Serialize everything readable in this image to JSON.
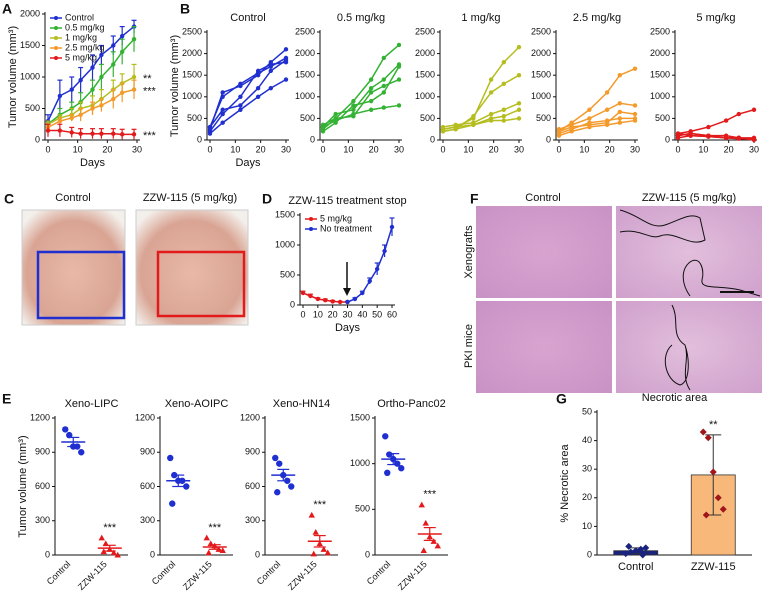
{
  "chart_data": [
    {
      "panel": "A",
      "type": "line",
      "ylabel": "Tumor volume (mm³)",
      "xlabel": "Days",
      "x": [
        0,
        4,
        8,
        11,
        15,
        18,
        22,
        25,
        29
      ],
      "xlim": [
        0,
        30
      ],
      "xticks": [
        0,
        10,
        20,
        30
      ],
      "ylim": [
        0,
        2000
      ],
      "yticks": [
        0,
        500,
        1000,
        1500,
        2000
      ],
      "legend": "upper left",
      "series": [
        {
          "name": "Control",
          "color": "#1f2fd0",
          "values": [
            300,
            700,
            800,
            950,
            1150,
            1350,
            1500,
            1650,
            1800
          ],
          "errors": [
            100,
            250,
            200,
            200,
            200,
            150,
            150,
            150,
            100
          ]
        },
        {
          "name": "0.5 mg/kg",
          "color": "#33b233",
          "values": [
            250,
            400,
            500,
            600,
            800,
            1000,
            1200,
            1400,
            1600
          ],
          "errors": [
            50,
            100,
            100,
            150,
            150,
            200,
            200,
            200,
            200
          ]
        },
        {
          "name": "1 mg/kg",
          "color": "#b5bd1f",
          "values": [
            250,
            350,
            400,
            500,
            550,
            650,
            800,
            900,
            1000
          ],
          "errors": [
            50,
            50,
            100,
            100,
            150,
            150,
            150,
            150,
            200
          ],
          "annotation": "**"
        },
        {
          "name": "2.5 mg/kg",
          "color": "#f39a2b",
          "values": [
            200,
            300,
            350,
            400,
            500,
            550,
            650,
            750,
            800
          ],
          "errors": [
            50,
            50,
            50,
            100,
            100,
            100,
            150,
            150,
            150
          ],
          "annotation": "***"
        },
        {
          "name": "5 mg/kg",
          "color": "#e31a1c",
          "values": [
            150,
            150,
            120,
            100,
            100,
            100,
            100,
            90,
            90
          ],
          "errors": [
            100,
            100,
            80,
            80,
            80,
            80,
            80,
            80,
            80
          ],
          "annotation": "***"
        }
      ]
    },
    {
      "panel": "B",
      "type": "line",
      "title": "Control",
      "ylabel": "Tumor volume (mm³)",
      "xlabel": "Days",
      "color": "#1f2fd0",
      "x": [
        0,
        5,
        12,
        19,
        24,
        30
      ],
      "xlim": [
        0,
        30
      ],
      "xticks": [
        0,
        10,
        20,
        30
      ],
      "ylim": [
        0,
        2500
      ],
      "yticks": [
        0,
        500,
        1000,
        1500,
        2000,
        2500
      ],
      "series": [
        {
          "values": [
            250,
            1100,
            1250,
            1500,
            1800,
            2100
          ]
        },
        {
          "values": [
            300,
            1000,
            1300,
            1550,
            1700,
            1900
          ]
        },
        {
          "values": [
            200,
            600,
            1000,
            1600,
            1750,
            1800
          ]
        },
        {
          "values": [
            300,
            700,
            800,
            1200,
            1600,
            1850
          ]
        },
        {
          "values": [
            150,
            400,
            700,
            1000,
            1200,
            1400
          ]
        }
      ]
    },
    {
      "type": "line",
      "title": "0.5 mg/kg",
      "color": "#33b233",
      "x": [
        0,
        5,
        12,
        19,
        24,
        30
      ],
      "xlim": [
        0,
        30
      ],
      "xticks": [
        0,
        10,
        20,
        30
      ],
      "ylim": [
        0,
        2500
      ],
      "yticks": [
        0,
        500,
        1000,
        1500,
        2000,
        2500
      ],
      "series": [
        {
          "values": [
            250,
            500,
            900,
            1400,
            1900,
            2200
          ]
        },
        {
          "values": [
            300,
            600,
            700,
            1200,
            1400,
            1750
          ]
        },
        {
          "values": [
            200,
            400,
            800,
            900,
            1100,
            1700
          ]
        },
        {
          "values": [
            350,
            500,
            550,
            1100,
            1250,
            1400
          ]
        },
        {
          "values": [
            300,
            450,
            600,
            700,
            750,
            800
          ]
        }
      ]
    },
    {
      "type": "line",
      "title": "1 mg/kg",
      "color": "#b5bd1f",
      "x": [
        0,
        5,
        12,
        19,
        24,
        30
      ],
      "xlim": [
        0,
        30
      ],
      "xticks": [
        0,
        10,
        20,
        30
      ],
      "ylim": [
        0,
        2500
      ],
      "yticks": [
        0,
        500,
        1000,
        1500,
        2000,
        2500
      ],
      "series": [
        {
          "values": [
            250,
            300,
            500,
            1400,
            1800,
            2150
          ]
        },
        {
          "values": [
            200,
            250,
            550,
            1100,
            1300,
            1500
          ]
        },
        {
          "values": [
            300,
            350,
            400,
            600,
            700,
            850
          ]
        },
        {
          "values": [
            250,
            300,
            350,
            500,
            550,
            700
          ]
        },
        {
          "values": [
            200,
            250,
            350,
            450,
            450,
            500
          ]
        }
      ]
    },
    {
      "type": "line",
      "title": "2.5 mg/kg",
      "color": "#f39a2b",
      "x": [
        0,
        5,
        12,
        19,
        24,
        30
      ],
      "xlim": [
        0,
        30
      ],
      "xticks": [
        0,
        10,
        20,
        30
      ],
      "ylim": [
        0,
        2500
      ],
      "yticks": [
        0,
        500,
        1000,
        1500,
        2000,
        2500
      ],
      "series": [
        {
          "values": [
            200,
            400,
            700,
            1100,
            1500,
            1650
          ]
        },
        {
          "values": [
            250,
            350,
            500,
            700,
            850,
            800
          ]
        },
        {
          "values": [
            200,
            300,
            350,
            400,
            650,
            600
          ]
        },
        {
          "values": [
            150,
            250,
            400,
            450,
            500,
            500
          ]
        },
        {
          "values": [
            100,
            200,
            300,
            350,
            400,
            450
          ]
        }
      ]
    },
    {
      "type": "line",
      "title": "5 mg/kg",
      "color": "#e31a1c",
      "x": [
        0,
        5,
        12,
        19,
        24,
        30
      ],
      "xlim": [
        0,
        30
      ],
      "xticks": [
        0,
        10,
        20,
        30
      ],
      "ylim": [
        0,
        2500
      ],
      "yticks": [
        0,
        500,
        1000,
        1500,
        2000,
        2500
      ],
      "series": [
        {
          "values": [
            150,
            200,
            300,
            450,
            600,
            700
          ]
        },
        {
          "values": [
            100,
            150,
            100,
            100,
            50,
            0
          ]
        },
        {
          "values": [
            150,
            100,
            80,
            50,
            50,
            30
          ]
        },
        {
          "values": [
            100,
            150,
            100,
            50,
            30,
            20
          ]
        },
        {
          "values": [
            50,
            100,
            80,
            50,
            50,
            50
          ]
        }
      ]
    },
    {
      "panel": "C",
      "type": "image",
      "labels": [
        "Control",
        "ZZW-115 (5 mg/kg)"
      ]
    },
    {
      "panel": "D",
      "type": "line",
      "title": "ZZW-115 treatment stop",
      "xlabel": "Days",
      "xlim": [
        0,
        60
      ],
      "xticks": [
        0,
        10,
        20,
        30,
        40,
        50,
        60
      ],
      "ylim": [
        0,
        1500
      ],
      "yticks": [
        0,
        500,
        1000,
        1500
      ],
      "legend": "upper left",
      "series": [
        {
          "name": "5 mg/kg",
          "color": "#e31a1c",
          "x": [
            0,
            5,
            10,
            15,
            20,
            25,
            30
          ],
          "values": [
            200,
            150,
            100,
            80,
            60,
            50,
            50
          ],
          "errors": [
            30,
            30,
            20,
            20,
            15,
            10,
            10
          ]
        },
        {
          "name": "No treatment",
          "color": "#1f2fd0",
          "x": [
            30,
            35,
            40,
            45,
            50,
            55,
            60
          ],
          "values": [
            50,
            100,
            200,
            400,
            600,
            900,
            1300
          ],
          "errors": [
            10,
            20,
            30,
            50,
            100,
            100,
            150
          ]
        }
      ]
    },
    {
      "panel": "F",
      "type": "image",
      "labels": [
        "Control",
        "ZZW-115 (5 mg/kg)"
      ],
      "row_labels": [
        "Xenografts",
        "PKI mice"
      ]
    },
    {
      "panel": "E",
      "type": "dot",
      "title": "Xeno-LIPC",
      "ylabel": "Tumor volume (mm³)",
      "categories": [
        "Control",
        "ZZW-115"
      ],
      "ylim": [
        0,
        1200
      ],
      "yticks": [
        0,
        300,
        600,
        900,
        1200
      ],
      "groups": [
        {
          "color": "#1f2fd0",
          "marker": "circle",
          "values": [
            1100,
            1050,
            950,
            950,
            900
          ],
          "mean": 990,
          "error": 40
        },
        {
          "color": "#e31a1c",
          "marker": "triangle",
          "values": [
            150,
            100,
            50,
            20,
            0,
            30
          ],
          "mean": 60,
          "error": 25,
          "annotation": "***"
        }
      ]
    },
    {
      "type": "dot",
      "title": "Xeno-AOIPC",
      "categories": [
        "Control",
        "ZZW-115"
      ],
      "ylim": [
        0,
        1200
      ],
      "yticks": [
        0,
        300,
        600,
        900,
        1200
      ],
      "groups": [
        {
          "color": "#1f2fd0",
          "marker": "circle",
          "values": [
            850,
            700,
            650,
            650,
            600,
            450
          ],
          "mean": 650,
          "error": 50
        },
        {
          "color": "#e31a1c",
          "marker": "triangle",
          "values": [
            150,
            100,
            80,
            50,
            40,
            20
          ],
          "mean": 70,
          "error": 20,
          "annotation": "***"
        }
      ]
    },
    {
      "type": "dot",
      "title": "Xeno-HN14",
      "categories": [
        "Control",
        "ZZW-115"
      ],
      "ylim": [
        0,
        1200
      ],
      "yticks": [
        0,
        300,
        600,
        900,
        1200
      ],
      "groups": [
        {
          "color": "#1f2fd0",
          "marker": "circle",
          "values": [
            850,
            800,
            700,
            650,
            600,
            550
          ],
          "mean": 700,
          "error": 50
        },
        {
          "color": "#e31a1c",
          "marker": "triangle",
          "values": [
            350,
            200,
            100,
            50,
            20,
            10
          ],
          "mean": 120,
          "error": 50,
          "annotation": "***"
        }
      ]
    },
    {
      "type": "dot",
      "title": "Ortho-Panc02",
      "categories": [
        "Control",
        "ZZW-115"
      ],
      "ylim": [
        0,
        1500
      ],
      "yticks": [
        0,
        500,
        1000,
        1500
      ],
      "groups": [
        {
          "color": "#1f2fd0",
          "marker": "circle",
          "values": [
            1300,
            1100,
            1050,
            1000,
            950,
            900
          ],
          "mean": 1050,
          "error": 60
        },
        {
          "color": "#e31a1c",
          "marker": "triangle",
          "values": [
            550,
            350,
            200,
            150,
            100,
            50
          ],
          "mean": 230,
          "error": 70,
          "annotation": "***"
        }
      ]
    },
    {
      "panel": "G",
      "type": "bar",
      "title": "Necrotic area",
      "ylabel": "% Necrotic area",
      "categories": [
        "Control",
        "ZZW-115"
      ],
      "ylim": [
        0,
        50
      ],
      "yticks": [
        0,
        10,
        20,
        30,
        40,
        50
      ],
      "values": [
        1.5,
        28
      ],
      "errors": [
        1,
        14
      ],
      "colors": [
        "#1a237e",
        "#f8b87a"
      ],
      "point_colors": [
        "#1a237e",
        "#a0161b"
      ],
      "points": [
        [
          0.5,
          1,
          1.5,
          2,
          2.5,
          3,
          0
        ],
        [
          43,
          41,
          29,
          20,
          16,
          14
        ]
      ],
      "annotations": [
        null,
        "**"
      ]
    }
  ]
}
